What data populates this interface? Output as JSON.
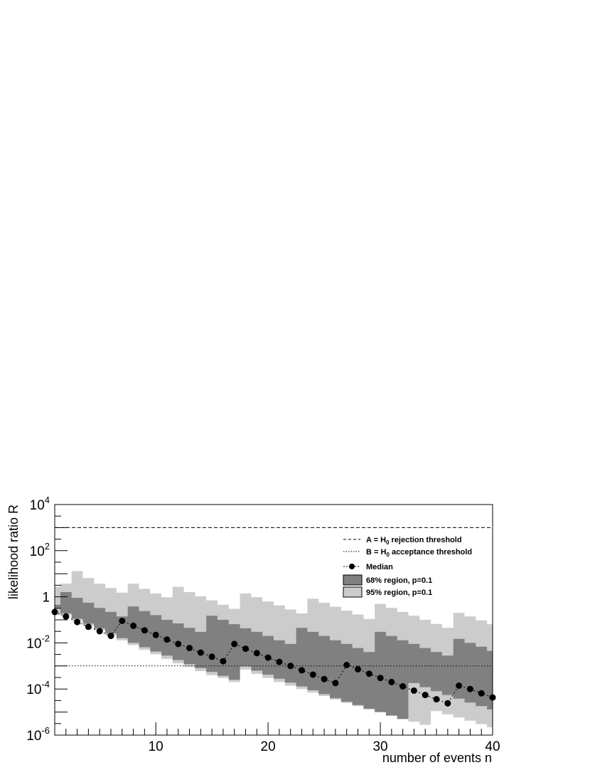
{
  "chart_data": {
    "type": "line",
    "xlabel": "number of events n",
    "ylabel": "likelihood ratio R",
    "xlim": [
      1,
      40
    ],
    "ylim": [
      1e-06,
      10000
    ],
    "y_scale": "log",
    "x_ticks": [
      {
        "value": 10,
        "label": "10"
      },
      {
        "value": 20,
        "label": "20"
      },
      {
        "value": 30,
        "label": "30"
      },
      {
        "value": 40,
        "label": "40"
      }
    ],
    "y_ticks": [
      {
        "value": 1e-06,
        "base": "10",
        "exp": "-6"
      },
      {
        "value": 0.0001,
        "base": "10",
        "exp": "-4"
      },
      {
        "value": 0.01,
        "base": "10",
        "exp": "-2"
      },
      {
        "value": 1,
        "base": "1",
        "exp": ""
      },
      {
        "value": 100,
        "base": "10",
        "exp": "2"
      },
      {
        "value": 10000,
        "base": "10",
        "exp": "4"
      }
    ],
    "thresholds": [
      {
        "name": "A",
        "value": 1000,
        "style": "dashed"
      },
      {
        "name": "B",
        "value": 0.001,
        "style": "dotted"
      }
    ],
    "bands": [
      {
        "name": "95% region, p=0.1",
        "color": "#cccccc",
        "x": [
          1,
          2,
          3,
          4,
          5,
          6,
          7,
          8,
          9,
          10,
          11,
          12,
          13,
          14,
          15,
          16,
          17,
          18,
          19,
          20,
          21,
          22,
          23,
          24,
          25,
          26,
          27,
          28,
          29,
          30,
          31,
          32,
          33,
          34,
          35,
          36,
          37,
          38,
          39,
          40
        ],
        "upper": [
          2.7,
          3.7,
          13.0,
          6.5,
          3.7,
          2.4,
          1.5,
          3.7,
          2.2,
          1.4,
          0.95,
          2.7,
          1.6,
          1.05,
          0.7,
          0.45,
          0.3,
          1.4,
          0.95,
          0.62,
          0.42,
          0.28,
          0.19,
          0.82,
          0.55,
          0.37,
          0.25,
          0.17,
          0.11,
          0.49,
          0.33,
          0.22,
          0.15,
          0.1,
          0.066,
          0.045,
          0.2,
          0.14,
          0.095,
          0.065
        ],
        "lower": [
          0.16,
          0.16,
          0.09,
          0.055,
          0.035,
          0.021,
          0.013,
          0.008,
          0.005,
          0.0032,
          0.002,
          0.0013,
          0.0009,
          0.0006,
          0.0004,
          0.0003,
          0.0002,
          0.0007,
          0.00045,
          0.0003,
          0.0002,
          0.00014,
          0.0001,
          7e-05,
          5e-05,
          3.5e-05,
          2.5e-05,
          1.8e-05,
          1.3e-05,
          1e-05,
          7.2e-06,
          5.2e-06,
          3.8e-06,
          2.8e-06,
          1.1e-05,
          8e-06,
          5.8e-06,
          4.2e-06,
          3e-06,
          2.2e-06
        ]
      },
      {
        "name": "68% region, p=0.1",
        "color": "#808080",
        "x": [
          1,
          2,
          3,
          4,
          5,
          6,
          7,
          8,
          9,
          10,
          11,
          12,
          13,
          14,
          15,
          16,
          17,
          18,
          19,
          20,
          21,
          22,
          23,
          24,
          25,
          26,
          27,
          28,
          29,
          30,
          31,
          32,
          33,
          34,
          35,
          36,
          37,
          38,
          39,
          40
        ],
        "upper": [
          0.45,
          1.6,
          0.9,
          0.55,
          0.33,
          0.22,
          0.14,
          0.38,
          0.24,
          0.16,
          0.1,
          0.07,
          0.045,
          0.03,
          0.15,
          0.1,
          0.065,
          0.043,
          0.03,
          0.02,
          0.013,
          0.009,
          0.045,
          0.03,
          0.02,
          0.013,
          0.009,
          0.006,
          0.004,
          0.03,
          0.02,
          0.013,
          0.009,
          0.006,
          0.004,
          0.0028,
          0.015,
          0.01,
          0.0068,
          0.0045
        ],
        "lower": [
          0.32,
          0.19,
          0.11,
          0.068,
          0.042,
          0.026,
          0.016,
          0.01,
          0.0065,
          0.0042,
          0.0028,
          0.0018,
          0.0012,
          0.0008,
          0.00055,
          0.00037,
          0.00025,
          0.00095,
          0.00062,
          0.00042,
          0.00028,
          0.00019,
          0.00013,
          8.8e-05,
          6e-05,
          4e-05,
          2.8e-05,
          2e-05,
          1.4e-05,
          1e-05,
          7e-06,
          5e-06,
          0.00018,
          0.00012,
          8e-05,
          5.5e-05,
          3.8e-05,
          2.6e-05,
          1.8e-05,
          1.3e-05
        ]
      }
    ],
    "series": [
      {
        "name": "Median",
        "x": [
          1,
          2,
          3,
          4,
          5,
          6,
          7,
          8,
          9,
          10,
          11,
          12,
          13,
          14,
          15,
          16,
          17,
          18,
          19,
          20,
          21,
          22,
          23,
          24,
          25,
          26,
          27,
          28,
          29,
          30,
          31,
          32,
          33,
          34,
          35,
          36,
          37,
          38,
          39,
          40
        ],
        "y": [
          0.22,
          0.14,
          0.08,
          0.05,
          0.032,
          0.02,
          0.09,
          0.055,
          0.035,
          0.022,
          0.014,
          0.009,
          0.006,
          0.0038,
          0.0025,
          0.0016,
          0.009,
          0.0056,
          0.0036,
          0.0023,
          0.0015,
          0.001,
          0.00065,
          0.00042,
          0.00027,
          0.00018,
          0.0011,
          0.00072,
          0.00046,
          0.0003,
          0.0002,
          0.00013,
          8.5e-05,
          5.5e-05,
          3.6e-05,
          2.4e-05,
          0.00014,
          0.0001,
          6.5e-05,
          4.3e-05
        ]
      }
    ],
    "legend": {
      "position": "top-right",
      "entries": [
        {
          "label_pre": "A = H",
          "label_sub": "0",
          "label_post": " rejection threshold",
          "symbol": "dashed-line"
        },
        {
          "label_pre": "B = H",
          "label_sub": "0",
          "label_post": " acceptance threshold",
          "symbol": "dotted-line"
        },
        {
          "label_pre": "Median",
          "label_sub": "",
          "label_post": "",
          "symbol": "marker-line"
        },
        {
          "label_pre": "68% region, p=0.1",
          "label_sub": "",
          "label_post": "",
          "symbol": "box-dark"
        },
        {
          "label_pre": "95% region, p=0.1",
          "label_sub": "",
          "label_post": "",
          "symbol": "box-light"
        }
      ]
    }
  }
}
